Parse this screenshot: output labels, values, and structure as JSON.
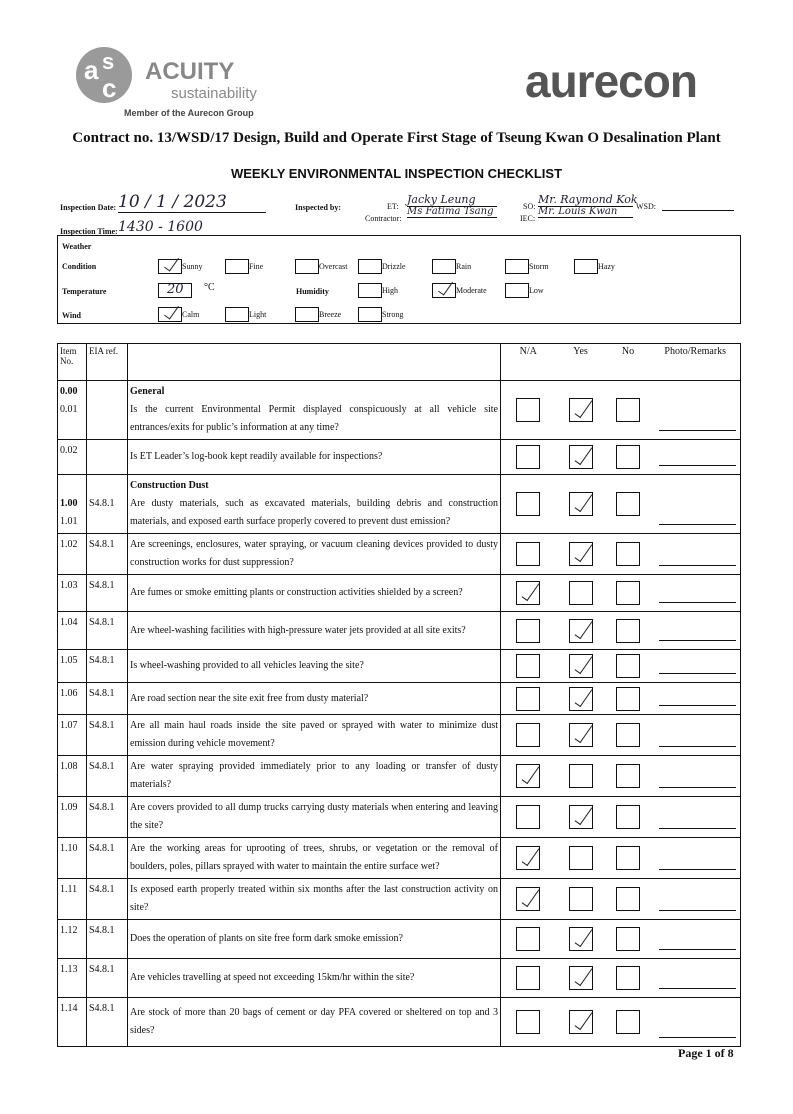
{
  "header": {
    "logo_left": {
      "name": "ACUITY",
      "tagline": "sustainability",
      "group": "Member of the Aurecon Group"
    },
    "logo_right": "aurecon",
    "contract": "Contract no. 13/WSD/17 Design, Build and Operate First Stage of Tseung Kwan O Desalination Plant",
    "title": "WEEKLY ENVIRONMENTAL INSPECTION CHECKLIST"
  },
  "inspection": {
    "date_label": "Inspection Date:",
    "date": "10 / 1 / 2023",
    "time_label": "Inspection Time:",
    "time": "1430 - 1600",
    "inspected_by_label": "Inspected by:",
    "et_label": "ET:",
    "et": "Jacky Leung",
    "contractor_label": "Contractor:",
    "contractor": "Ms Fatima Tsang",
    "so_label": "SO:",
    "so": "Mr. Raymond Kok",
    "wsd_label": "WSD:",
    "iec_label": "IEC:",
    "iec": "Mr. Louis Kwan"
  },
  "weather": {
    "label": "Weather",
    "condition_label": "Condition",
    "conditions": [
      "Sunny",
      "Fine",
      "Overcast",
      "Drizzle",
      "Rain",
      "Storm",
      "Hazy"
    ],
    "temperature_label": "Temperature",
    "temperature": "20",
    "temperature_unit": "°C",
    "humidity_label": "Humidity",
    "humidity": [
      "High",
      "Moderate",
      "Low"
    ],
    "wind_label": "Wind",
    "wind": [
      "Calm",
      "Light",
      "Breeze",
      "Strong"
    ]
  },
  "table": {
    "headers": {
      "item": "Item No.",
      "eia": "EIA ref.",
      "na": "N/A",
      "yes": "Yes",
      "no": "No",
      "remarks": "Photo/Remarks"
    },
    "rows": [
      {
        "section_item": "0.00",
        "item": "0.01",
        "section": "General",
        "question": "Is the current Environmental Permit displayed conspicuously at all vehicle site entrances/exits for public’s information at any time?"
      },
      {
        "item": "0.02",
        "question": "Is ET Leader’s log-book kept readily available for inspections?"
      },
      {
        "section_item": "1.00",
        "item": "1.01",
        "eia": "S4.8.1",
        "section": "Construction Dust",
        "question": "Are dusty materials, such as excavated materials, building debris and construction materials, and exposed earth surface properly covered to prevent dust emission?"
      },
      {
        "item": "1.02",
        "eia": "S4.8.1",
        "question": "Are screenings, enclosures, water spraying, or vacuum cleaning devices provided to dusty construction works for dust suppression?"
      },
      {
        "item": "1.03",
        "eia": "S4.8.1",
        "question": "Are fumes or smoke emitting plants or construction activities shielded by a screen?"
      },
      {
        "item": "1.04",
        "eia": "S4.8.1",
        "question": "Are wheel-washing facilities with high-pressure water jets provided at all site exits?"
      },
      {
        "item": "1.05",
        "eia": "S4.8.1",
        "question": "Is wheel-washing provided to all vehicles leaving the site?"
      },
      {
        "item": "1.06",
        "eia": "S4.8.1",
        "question": "Are road section near the site exit free from dusty material?"
      },
      {
        "item": "1.07",
        "eia": "S4.8.1",
        "question": "Are all main haul roads inside the site paved or sprayed with water to minimize dust emission during vehicle movement?"
      },
      {
        "item": "1.08",
        "eia": "S4.8.1",
        "question": "Are water spraying provided immediately prior to any loading or transfer of dusty materials?"
      },
      {
        "item": "1.09",
        "eia": "S4.8.1",
        "question": "Are covers provided to all dump trucks carrying dusty materials when entering and leaving the site?"
      },
      {
        "item": "1.10",
        "eia": "S4.8.1",
        "question": "Are the working areas for uprooting of trees, shrubs, or vegetation or the removal of boulders, poles, pillars sprayed with water to maintain the entire surface wet?"
      },
      {
        "item": "1.11",
        "eia": "S4.8.1",
        "question": "Is exposed earth properly treated within six months after the last construction activity on site?"
      },
      {
        "item": "1.12",
        "eia": "S4.8.1",
        "question": "Does the operation of plants on site free form dark smoke emission?"
      },
      {
        "item": "1.13",
        "eia": "S4.8.1",
        "question": "Are vehicles travelling at speed not exceeding 15km/hr within the site?"
      },
      {
        "item": "1.14",
        "eia": "S4.8.1",
        "question": "Are stock of more than 20 bags of cement or day PFA covered or sheltered on top and 3 sides?"
      }
    ]
  },
  "footer": {
    "page": "Page 1 of 8"
  }
}
